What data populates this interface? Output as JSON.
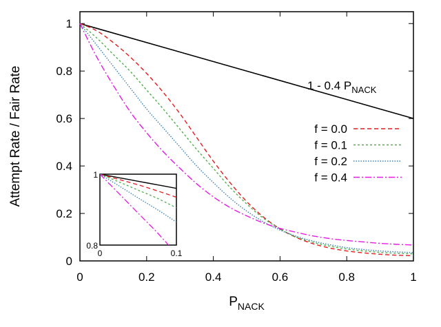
{
  "chart_data": {
    "type": "line",
    "title": "",
    "xlabel": "P",
    "xlabel_sub": "NACK",
    "ylabel": "Attempt Rate / Fair Rate",
    "xlim": [
      0,
      1
    ],
    "ylim": [
      0,
      1.05
    ],
    "x_ticks": [
      {
        "value": 0,
        "label": "0"
      },
      {
        "value": 0.2,
        "label": "0.2"
      },
      {
        "value": 0.4,
        "label": "0.4"
      },
      {
        "value": 0.6,
        "label": "0.6"
      },
      {
        "value": 0.8,
        "label": "0.8"
      },
      {
        "value": 1,
        "label": "1"
      }
    ],
    "y_ticks": [
      {
        "value": 0,
        "label": "0"
      },
      {
        "value": 0.2,
        "label": "0.2"
      },
      {
        "value": 0.4,
        "label": "0.4"
      },
      {
        "value": 0.6,
        "label": "0.6"
      },
      {
        "value": 0.8,
        "label": "0.8"
      },
      {
        "value": 1,
        "label": "1"
      }
    ],
    "grid": false,
    "legend_position": "right",
    "reference_line": {
      "label_main": "1 - 0.4 P",
      "label_sub": "NACK",
      "color": "#000000",
      "x": [
        0,
        1
      ],
      "y": [
        1,
        0.6
      ]
    },
    "x": [
      0,
      0.05,
      0.1,
      0.15,
      0.2,
      0.25,
      0.3,
      0.35,
      0.4,
      0.45,
      0.5,
      0.55,
      0.6,
      0.65,
      0.7,
      0.75,
      0.8,
      0.85,
      0.9,
      0.95,
      1.0
    ],
    "series": [
      {
        "name": "f = 0.0",
        "color": "#e41a1c",
        "dash": "6,4",
        "values": [
          1.0,
          0.97,
          0.92,
          0.86,
          0.79,
          0.71,
          0.62,
          0.52,
          0.42,
          0.33,
          0.25,
          0.185,
          0.135,
          0.098,
          0.072,
          0.054,
          0.042,
          0.034,
          0.028,
          0.024,
          0.022
        ]
      },
      {
        "name": "f = 0.1",
        "color": "#4daf4a",
        "dash": "3,3",
        "values": [
          1.0,
          0.94,
          0.87,
          0.8,
          0.72,
          0.64,
          0.555,
          0.47,
          0.39,
          0.31,
          0.24,
          0.18,
          0.135,
          0.1,
          0.078,
          0.062,
          0.05,
          0.042,
          0.036,
          0.032,
          0.03
        ]
      },
      {
        "name": "f = 0.2",
        "color": "#377eb8",
        "dash": "1.5,2",
        "values": [
          1.0,
          0.91,
          0.82,
          0.73,
          0.64,
          0.56,
          0.48,
          0.4,
          0.33,
          0.265,
          0.21,
          0.165,
          0.13,
          0.103,
          0.083,
          0.068,
          0.056,
          0.048,
          0.042,
          0.038,
          0.035
        ]
      },
      {
        "name": "f = 0.4",
        "color": "#e41ae4",
        "dash": "9,3,2,3",
        "values": [
          1.0,
          0.86,
          0.74,
          0.63,
          0.54,
          0.46,
          0.39,
          0.325,
          0.27,
          0.225,
          0.19,
          0.16,
          0.137,
          0.12,
          0.105,
          0.094,
          0.086,
          0.08,
          0.074,
          0.07,
          0.067
        ]
      }
    ],
    "inset": {
      "xlim": [
        0,
        0.1
      ],
      "ylim": [
        0.8,
        1.0
      ],
      "x_ticks": [
        {
          "value": 0,
          "label": "0"
        },
        {
          "value": 0.1,
          "label": "0.1"
        }
      ],
      "y_ticks": [
        {
          "value": 0.8,
          "label": "0.8"
        },
        {
          "value": 1,
          "label": "1"
        }
      ],
      "x": [
        0,
        0.025,
        0.05,
        0.075,
        0.1
      ],
      "reference_values": [
        1.0,
        0.99,
        0.98,
        0.97,
        0.96
      ],
      "series_values": [
        [
          1.0,
          0.985,
          0.97,
          0.953,
          0.935
        ],
        [
          1.0,
          0.978,
          0.955,
          0.932,
          0.905
        ],
        [
          1.0,
          0.967,
          0.933,
          0.9,
          0.865
        ],
        [
          1.0,
          0.945,
          0.89,
          0.835,
          0.775
        ]
      ]
    }
  }
}
